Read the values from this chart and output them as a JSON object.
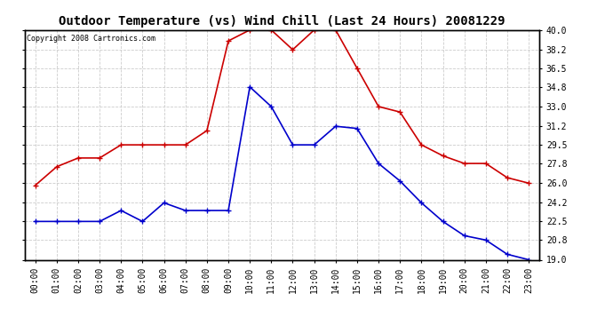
{
  "title": "Outdoor Temperature (vs) Wind Chill (Last 24 Hours) 20081229",
  "copyright": "Copyright 2008 Cartronics.com",
  "hours": [
    "00:00",
    "01:00",
    "02:00",
    "03:00",
    "04:00",
    "05:00",
    "06:00",
    "07:00",
    "08:00",
    "09:00",
    "10:00",
    "11:00",
    "12:00",
    "13:00",
    "14:00",
    "15:00",
    "16:00",
    "17:00",
    "18:00",
    "19:00",
    "20:00",
    "21:00",
    "22:00",
    "23:00"
  ],
  "temp": [
    25.8,
    27.5,
    28.3,
    28.3,
    29.5,
    29.5,
    29.5,
    29.5,
    30.8,
    39.0,
    40.0,
    40.0,
    38.2,
    40.0,
    40.0,
    36.5,
    33.0,
    32.5,
    29.5,
    28.5,
    27.8,
    27.8,
    26.5,
    26.0
  ],
  "windchill": [
    22.5,
    22.5,
    22.5,
    22.5,
    23.5,
    22.5,
    24.2,
    23.5,
    23.5,
    23.5,
    34.8,
    33.0,
    29.5,
    29.5,
    31.2,
    31.0,
    27.8,
    26.2,
    24.2,
    22.5,
    21.2,
    20.8,
    19.5,
    19.0
  ],
  "temp_color": "#cc0000",
  "windchill_color": "#0000cc",
  "marker": "+",
  "markersize": 5,
  "linewidth": 1.2,
  "yticks": [
    19.0,
    20.8,
    22.5,
    24.2,
    26.0,
    27.8,
    29.5,
    31.2,
    33.0,
    34.8,
    36.5,
    38.2,
    40.0
  ],
  "ymin": 19.0,
  "ymax": 40.0,
  "bg_color": "#ffffff",
  "plot_bg_color": "#ffffff",
  "grid_color": "#cccccc",
  "title_fontsize": 10,
  "copyright_fontsize": 6,
  "tick_fontsize": 7
}
